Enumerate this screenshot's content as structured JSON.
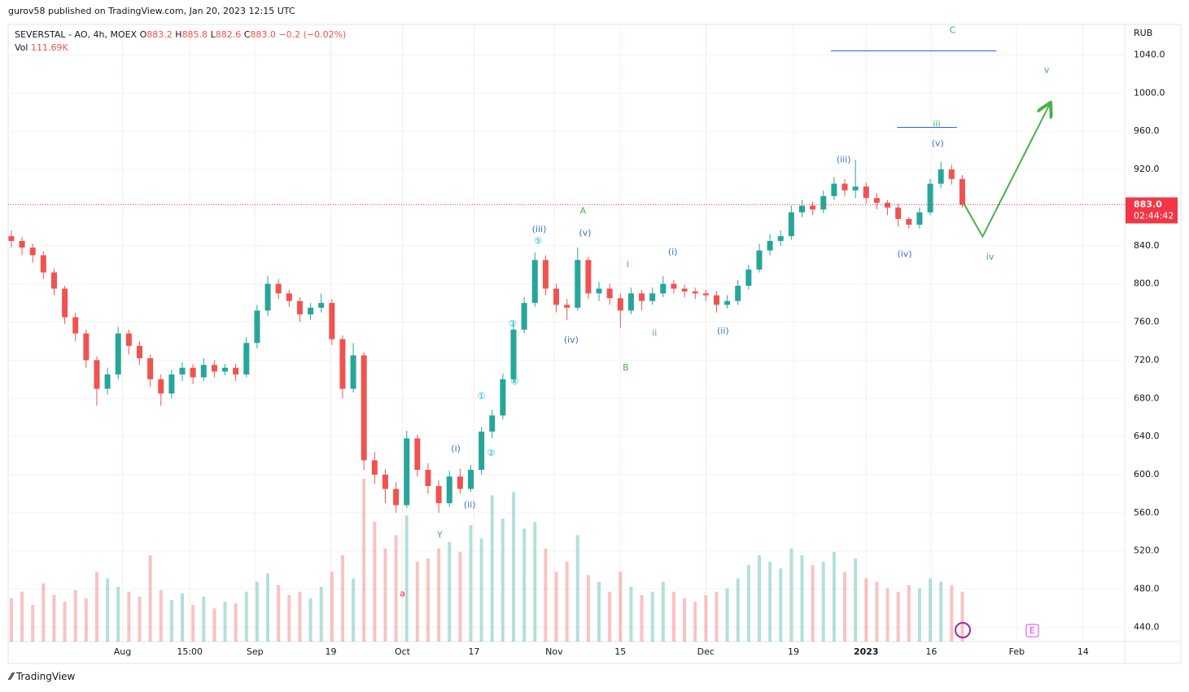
{
  "header": {
    "text": "gurov58 published on TradingView.com, Jan 20, 2023 12:15 UTC",
    "brand": "TradingView"
  },
  "legend": {
    "symbol": "SEVERSTAL - AO, 4h, MOEX",
    "fields": [
      {
        "key": "O",
        "value": "883.2"
      },
      {
        "key": "H",
        "value": "885.8"
      },
      {
        "key": "L",
        "value": "882.6"
      },
      {
        "key": "C",
        "value": "883.0"
      }
    ],
    "change": "−0.2 (−0.02%)",
    "vol_label": "Vol",
    "vol": "111.69K"
  },
  "chart_data": {
    "type": "candlestick",
    "currency": "RUB",
    "open": [
      850,
      845,
      838,
      830,
      812,
      795,
      765,
      748,
      720,
      690,
      705,
      748,
      735,
      722,
      700,
      685,
      705,
      712,
      702,
      715,
      708,
      712,
      705,
      738,
      772,
      800,
      790,
      782,
      768,
      775,
      780,
      742,
      690,
      725,
      615,
      600,
      585,
      568,
      638,
      605,
      588,
      570,
      598,
      585,
      605,
      645,
      662,
      700,
      752,
      780,
      825,
      795,
      778,
      775,
      825,
      790,
      795,
      785,
      772,
      790,
      782,
      790,
      800,
      795,
      792,
      790,
      788,
      778,
      782,
      798,
      815,
      835,
      845,
      850,
      875,
      882,
      878,
      892,
      905,
      898,
      902,
      890,
      885,
      880,
      868,
      862,
      875,
      905,
      920,
      910
    ],
    "high": [
      856,
      849,
      842,
      834,
      816,
      798,
      770,
      752,
      724,
      712,
      755,
      752,
      740,
      726,
      705,
      710,
      718,
      716,
      722,
      720,
      716,
      716,
      744,
      778,
      808,
      805,
      794,
      786,
      780,
      790,
      784,
      746,
      738,
      728,
      624,
      606,
      592,
      646,
      642,
      612,
      594,
      604,
      606,
      610,
      650,
      668,
      706,
      758,
      786,
      833,
      830,
      800,
      784,
      838,
      828,
      802,
      800,
      790,
      796,
      794,
      796,
      808,
      804,
      799,
      796,
      794,
      792,
      788,
      804,
      820,
      842,
      852,
      856,
      882,
      888,
      886,
      898,
      912,
      910,
      930,
      906,
      895,
      888,
      884,
      870,
      880,
      910,
      928,
      925,
      914
    ],
    "low": [
      838,
      830,
      822,
      805,
      788,
      758,
      740,
      712,
      672,
      684,
      700,
      726,
      715,
      692,
      672,
      680,
      698,
      695,
      698,
      702,
      704,
      698,
      702,
      732,
      766,
      784,
      776,
      760,
      762,
      770,
      736,
      680,
      686,
      605,
      590,
      570,
      560,
      565,
      598,
      580,
      560,
      566,
      580,
      582,
      600,
      638,
      658,
      696,
      748,
      776,
      788,
      770,
      762,
      772,
      784,
      782,
      778,
      754,
      768,
      772,
      778,
      786,
      790,
      786,
      784,
      782,
      770,
      774,
      778,
      794,
      812,
      830,
      840,
      846,
      870,
      872,
      874,
      888,
      892,
      890,
      884,
      878,
      872,
      860,
      858,
      858,
      872,
      900,
      904,
      880
    ],
    "close": [
      845,
      838,
      830,
      812,
      795,
      765,
      748,
      720,
      690,
      705,
      748,
      735,
      722,
      700,
      685,
      705,
      712,
      702,
      715,
      708,
      712,
      705,
      738,
      772,
      800,
      790,
      782,
      768,
      775,
      780,
      742,
      690,
      725,
      615,
      600,
      585,
      568,
      638,
      605,
      588,
      570,
      598,
      585,
      605,
      645,
      662,
      700,
      752,
      780,
      825,
      795,
      778,
      775,
      825,
      790,
      795,
      785,
      772,
      790,
      782,
      790,
      800,
      795,
      792,
      790,
      788,
      778,
      782,
      798,
      815,
      835,
      845,
      850,
      875,
      882,
      878,
      892,
      905,
      898,
      902,
      890,
      885,
      880,
      868,
      862,
      875,
      905,
      920,
      910,
      883
    ],
    "volume": [
      260,
      300,
      220,
      350,
      280,
      240,
      310,
      260,
      420,
      380,
      330,
      300,
      270,
      520,
      310,
      250,
      290,
      220,
      270,
      200,
      240,
      230,
      300,
      360,
      410,
      340,
      280,
      300,
      260,
      330,
      420,
      520,
      380,
      980,
      720,
      560,
      640,
      760,
      480,
      500,
      560,
      600,
      540,
      700,
      620,
      880,
      740,
      900,
      680,
      720,
      560,
      420,
      480,
      640,
      400,
      360,
      300,
      420,
      330,
      280,
      300,
      360,
      300,
      260,
      240,
      280,
      300,
      320,
      380,
      460,
      520,
      480,
      440,
      560,
      520,
      460,
      480,
      540,
      420,
      500,
      380,
      360,
      320,
      300,
      340,
      320,
      380,
      360,
      340,
      300
    ],
    "xlim": [
      -0.3,
      104.2
    ],
    "ylim": [
      425,
      1072
    ],
    "xticks": [
      {
        "value": 10.4,
        "label": "Aug"
      },
      {
        "value": 16.7,
        "label": "15:00"
      },
      {
        "value": 22.8,
        "label": "Sep"
      },
      {
        "value": 29.9,
        "label": "19"
      },
      {
        "value": 36.6,
        "label": "Oct"
      },
      {
        "value": 43.3,
        "label": "17"
      },
      {
        "value": 50.8,
        "label": "Nov"
      },
      {
        "value": 57.0,
        "label": "15"
      },
      {
        "value": 65.0,
        "label": "Dec"
      },
      {
        "value": 73.2,
        "label": "19"
      },
      {
        "value": 80.0,
        "label": "2023"
      },
      {
        "value": 86.1,
        "label": "16"
      },
      {
        "value": 94.1,
        "label": "Feb"
      },
      {
        "value": 100.3,
        "label": "14"
      }
    ],
    "yticks": [
      {
        "value": 440,
        "label": "440.0"
      },
      {
        "value": 480,
        "label": "480.0"
      },
      {
        "value": 520,
        "label": "520.0"
      },
      {
        "value": 560,
        "label": "560.0"
      },
      {
        "value": 600,
        "label": "600.0"
      },
      {
        "value": 640,
        "label": "640.0"
      },
      {
        "value": 680,
        "label": "680.0"
      },
      {
        "value": 720,
        "label": "720.0"
      },
      {
        "value": 760,
        "label": "760.0"
      },
      {
        "value": 800,
        "label": "800.0"
      },
      {
        "value": 840,
        "label": "840.0"
      },
      {
        "value": 880,
        "label": "880.0"
      },
      {
        "value": 920,
        "label": "920.0"
      },
      {
        "value": 960,
        "label": "960.0"
      },
      {
        "value": 1000,
        "label": "1000.0"
      },
      {
        "value": 1040,
        "label": "1040.0"
      }
    ],
    "grid": true,
    "up_color": "#26a69a",
    "down_color": "#ef5350",
    "last_price": {
      "value": 883,
      "label": "883.0",
      "countdown": "02:44:42",
      "color": "#f23645"
    },
    "annotations": [
      {
        "text": "C",
        "x": 88.1,
        "y": 1065.6,
        "color": "#4caf50"
      },
      {
        "text": "v",
        "x": 96.9,
        "y": 1023.8,
        "color": "#4caf50"
      },
      {
        "text": "iii",
        "x": 86.6,
        "y": 967.4,
        "color": "#4caf50"
      },
      {
        "text": "(v)",
        "x": 86.7,
        "y": 947,
        "color": "#3a6fd6"
      },
      {
        "text": "(iii)",
        "x": 77.9,
        "y": 930,
        "color": "#3a6fd6"
      },
      {
        "text": "A",
        "x": 53.5,
        "y": 876,
        "color": "#4caf50"
      },
      {
        "text": "(iii)",
        "x": 49.4,
        "y": 857,
        "color": "#3a6fd6"
      },
      {
        "text": "⑤",
        "x": 49.3,
        "y": 844.5,
        "color": "#00bcd4"
      },
      {
        "text": "(v)",
        "x": 53.7,
        "y": 853,
        "color": "#3a6fd6"
      },
      {
        "text": "i",
        "x": 57.7,
        "y": 820,
        "color": "#4caf50"
      },
      {
        "text": "(i)",
        "x": 61.9,
        "y": 833,
        "color": "#3a6fd6"
      },
      {
        "text": "(iv)",
        "x": 83.6,
        "y": 831,
        "color": "#3a6fd6"
      },
      {
        "text": "iv",
        "x": 91.6,
        "y": 828,
        "color": "#4caf50"
      },
      {
        "text": "(iv)",
        "x": 52.4,
        "y": 741,
        "color": "#3a6fd6"
      },
      {
        "text": "ii",
        "x": 60.2,
        "y": 748,
        "color": "#4caf50"
      },
      {
        "text": "(ii)",
        "x": 66.6,
        "y": 750,
        "color": "#3a6fd6"
      },
      {
        "text": "③",
        "x": 46.9,
        "y": 758,
        "color": "#00bcd4"
      },
      {
        "text": "B",
        "x": 57.5,
        "y": 712,
        "color": "#4caf50"
      },
      {
        "text": "④",
        "x": 47.1,
        "y": 697,
        "color": "#00bcd4"
      },
      {
        "text": "①",
        "x": 44.0,
        "y": 682,
        "color": "#00bcd4"
      },
      {
        "text": "(i)",
        "x": 41.6,
        "y": 627,
        "color": "#3a6fd6"
      },
      {
        "text": "②",
        "x": 44.9,
        "y": 622,
        "color": "#00bcd4"
      },
      {
        "text": "(ii)",
        "x": 42.9,
        "y": 568,
        "color": "#3a6fd6"
      },
      {
        "text": "Y",
        "x": 40.1,
        "y": 536.4,
        "color": "#4caf50"
      },
      {
        "text": "a",
        "x": 36.6,
        "y": 475,
        "color": "#e91e63"
      }
    ],
    "levels": [
      {
        "y": 1044.3,
        "x": [
          76.7,
          92.2
        ],
        "color": "#2962ff"
      },
      {
        "y": 964,
        "x": [
          82.9,
          88.5
        ],
        "color": "#2962ff"
      }
    ],
    "projection": {
      "x": [
        89.2,
        90.9,
        97.2
      ],
      "y": [
        883,
        849.6,
        988.8
      ],
      "color": "#4caf50"
    },
    "earnings_badge": "E"
  }
}
